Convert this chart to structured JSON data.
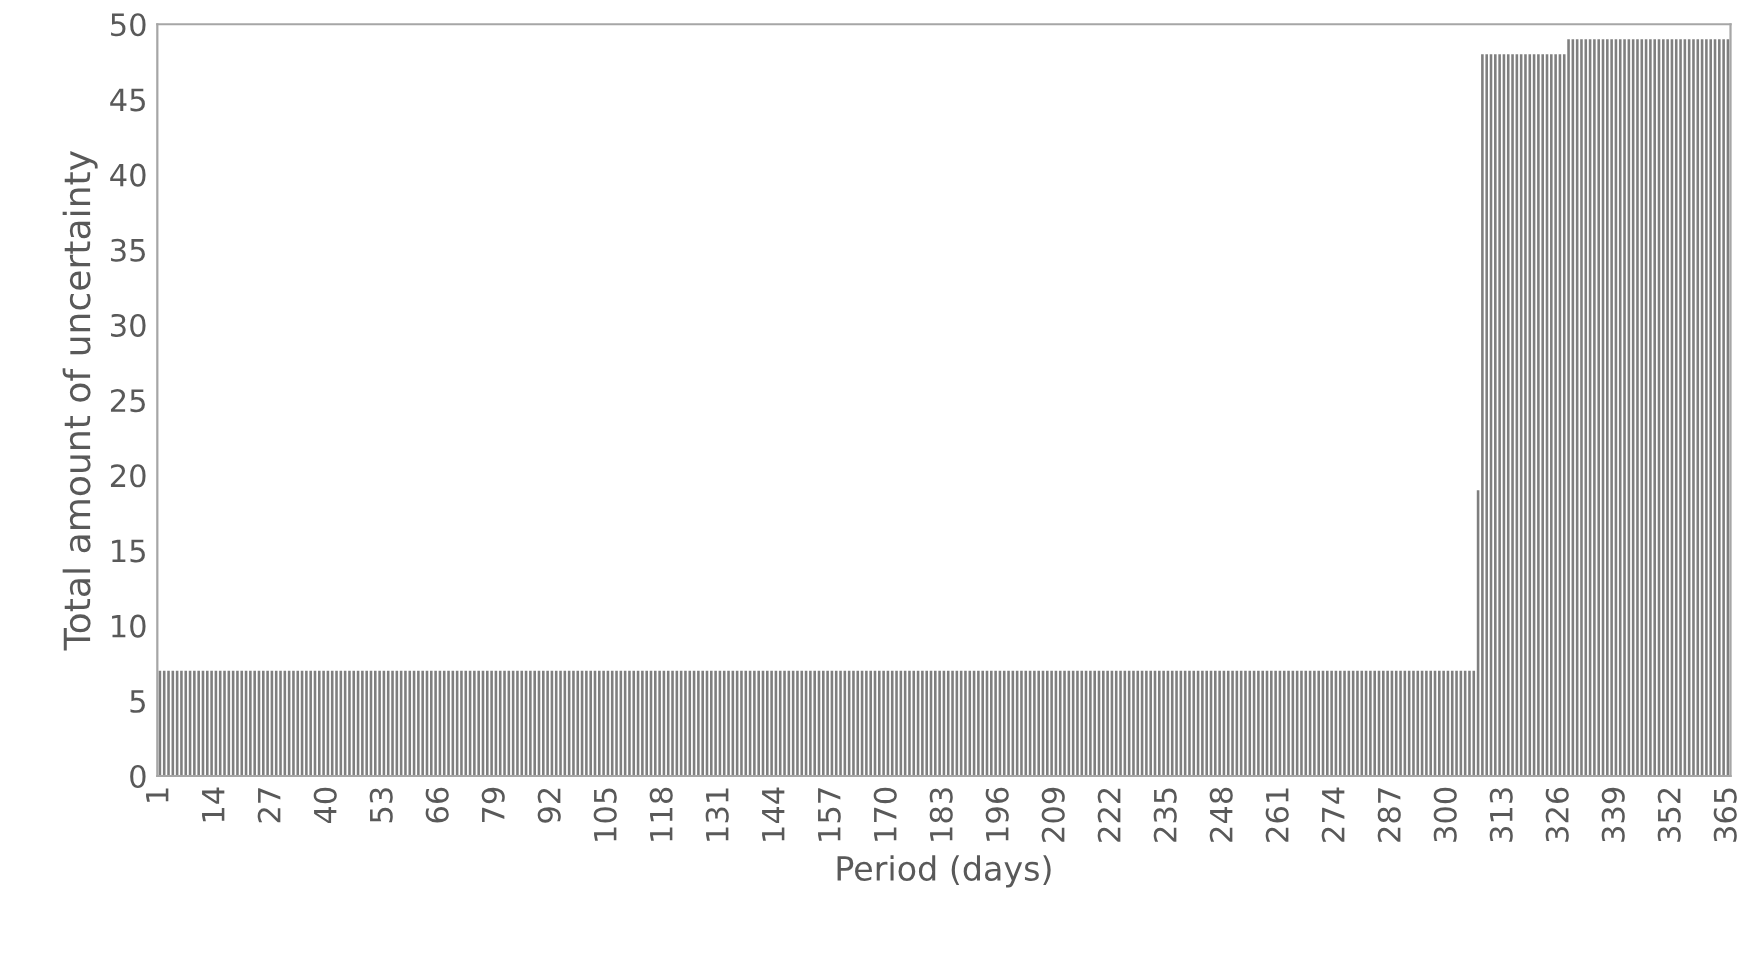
{
  "chart_data": {
    "type": "bar",
    "xlabel": "Period (days)",
    "ylabel": "Total amount of uncertainty",
    "color": "#7f7f7f",
    "ylim": [
      0,
      50
    ],
    "yticks": [
      0,
      5,
      10,
      15,
      20,
      25,
      30,
      35,
      40,
      45,
      50
    ],
    "grid": false,
    "legend": false,
    "categories": [
      "1",
      null,
      null,
      null,
      null,
      null,
      null,
      null,
      null,
      null,
      null,
      null,
      null,
      "14",
      null,
      null,
      null,
      null,
      null,
      null,
      null,
      null,
      null,
      null,
      null,
      null,
      "27",
      null,
      null,
      null,
      null,
      null,
      null,
      null,
      null,
      null,
      null,
      null,
      null,
      "40",
      null,
      null,
      null,
      null,
      null,
      null,
      null,
      null,
      null,
      null,
      null,
      null,
      "53",
      null,
      null,
      null,
      null,
      null,
      null,
      null,
      null,
      null,
      null,
      null,
      null,
      "66",
      null,
      null,
      null,
      null,
      null,
      null,
      null,
      null,
      null,
      null,
      null,
      null,
      "79",
      null,
      null,
      null,
      null,
      null,
      null,
      null,
      null,
      null,
      null,
      null,
      null,
      "92",
      null,
      null,
      null,
      null,
      null,
      null,
      null,
      null,
      null,
      null,
      null,
      null,
      "105",
      null,
      null,
      null,
      null,
      null,
      null,
      null,
      null,
      null,
      null,
      null,
      null,
      "118",
      null,
      null,
      null,
      null,
      null,
      null,
      null,
      null,
      null,
      null,
      null,
      null,
      "131",
      null,
      null,
      null,
      null,
      null,
      null,
      null,
      null,
      null,
      null,
      null,
      null,
      "144",
      null,
      null,
      null,
      null,
      null,
      null,
      null,
      null,
      null,
      null,
      null,
      null,
      "157",
      null,
      null,
      null,
      null,
      null,
      null,
      null,
      null,
      null,
      null,
      null,
      null,
      "170",
      null,
      null,
      null,
      null,
      null,
      null,
      null,
      null,
      null,
      null,
      null,
      null,
      "183",
      null,
      null,
      null,
      null,
      null,
      null,
      null,
      null,
      null,
      null,
      null,
      null,
      "196",
      null,
      null,
      null,
      null,
      null,
      null,
      null,
      null,
      null,
      null,
      null,
      null,
      "209",
      null,
      null,
      null,
      null,
      null,
      null,
      null,
      null,
      null,
      null,
      null,
      null,
      "222",
      null,
      null,
      null,
      null,
      null,
      null,
      null,
      null,
      null,
      null,
      null,
      null,
      "235",
      null,
      null,
      null,
      null,
      null,
      null,
      null,
      null,
      null,
      null,
      null,
      null,
      "248",
      null,
      null,
      null,
      null,
      null,
      null,
      null,
      null,
      null,
      null,
      null,
      null,
      "261",
      null,
      null,
      null,
      null,
      null,
      null,
      null,
      null,
      null,
      null,
      null,
      null,
      "274",
      null,
      null,
      null,
      null,
      null,
      null,
      null,
      null,
      null,
      null,
      null,
      null,
      "287",
      null,
      null,
      null,
      null,
      null,
      null,
      null,
      null,
      null,
      null,
      null,
      null,
      "300",
      null,
      null,
      null,
      null,
      null,
      null,
      null,
      null,
      null,
      null,
      null,
      null,
      "313",
      null,
      null,
      null,
      null,
      null,
      null,
      null,
      null,
      null,
      null,
      null,
      null,
      "326",
      null,
      null,
      null,
      null,
      null,
      null,
      null,
      null,
      null,
      null,
      null,
      null,
      "339",
      null,
      null,
      null,
      null,
      null,
      null,
      null,
      null,
      null,
      null,
      null,
      null,
      "352",
      null,
      null,
      null,
      null,
      null,
      null,
      null,
      null,
      null,
      null,
      null,
      null,
      "365"
    ],
    "values": [
      7,
      7,
      7,
      7,
      7,
      7,
      7,
      7,
      7,
      7,
      7,
      7,
      7,
      7,
      7,
      7,
      7,
      7,
      7,
      7,
      7,
      7,
      7,
      7,
      7,
      7,
      7,
      7,
      7,
      7,
      7,
      7,
      7,
      7,
      7,
      7,
      7,
      7,
      7,
      7,
      7,
      7,
      7,
      7,
      7,
      7,
      7,
      7,
      7,
      7,
      7,
      7,
      7,
      7,
      7,
      7,
      7,
      7,
      7,
      7,
      7,
      7,
      7,
      7,
      7,
      7,
      7,
      7,
      7,
      7,
      7,
      7,
      7,
      7,
      7,
      7,
      7,
      7,
      7,
      7,
      7,
      7,
      7,
      7,
      7,
      7,
      7,
      7,
      7,
      7,
      7,
      7,
      7,
      7,
      7,
      7,
      7,
      7,
      7,
      7,
      7,
      7,
      7,
      7,
      7,
      7,
      7,
      7,
      7,
      7,
      7,
      7,
      7,
      7,
      7,
      7,
      7,
      7,
      7,
      7,
      7,
      7,
      7,
      7,
      7,
      7,
      7,
      7,
      7,
      7,
      7,
      7,
      7,
      7,
      7,
      7,
      7,
      7,
      7,
      7,
      7,
      7,
      7,
      7,
      7,
      7,
      7,
      7,
      7,
      7,
      7,
      7,
      7,
      7,
      7,
      7,
      7,
      7,
      7,
      7,
      7,
      7,
      7,
      7,
      7,
      7,
      7,
      7,
      7,
      7,
      7,
      7,
      7,
      7,
      7,
      7,
      7,
      7,
      7,
      7,
      7,
      7,
      7,
      7,
      7,
      7,
      7,
      7,
      7,
      7,
      7,
      7,
      7,
      7,
      7,
      7,
      7,
      7,
      7,
      7,
      7,
      7,
      7,
      7,
      7,
      7,
      7,
      7,
      7,
      7,
      7,
      7,
      7,
      7,
      7,
      7,
      7,
      7,
      7,
      7,
      7,
      7,
      7,
      7,
      7,
      7,
      7,
      7,
      7,
      7,
      7,
      7,
      7,
      7,
      7,
      7,
      7,
      7,
      7,
      7,
      7,
      7,
      7,
      7,
      7,
      7,
      7,
      7,
      7,
      7,
      7,
      7,
      7,
      7,
      7,
      7,
      7,
      7,
      7,
      7,
      7,
      7,
      7,
      7,
      7,
      7,
      7,
      7,
      7,
      7,
      7,
      7,
      7,
      7,
      7,
      7,
      7,
      7,
      7,
      7,
      7,
      7,
      7,
      7,
      7,
      7,
      7,
      7,
      7,
      7,
      7,
      7,
      7,
      7,
      7,
      7,
      7,
      7,
      7,
      7,
      7,
      7,
      7,
      7,
      7,
      7,
      19,
      48,
      48,
      48,
      48,
      48,
      48,
      48,
      48,
      48,
      48,
      48,
      48,
      48,
      48,
      48,
      48,
      48,
      48,
      48,
      48,
      49,
      49,
      49,
      49,
      49,
      49,
      49,
      49,
      49,
      49,
      49,
      49,
      49,
      49,
      49,
      49,
      49,
      49,
      49,
      49,
      49,
      49,
      49,
      49,
      49,
      49,
      49,
      49,
      49,
      49,
      49,
      49,
      49,
      49,
      49,
      49,
      49,
      49
    ]
  }
}
